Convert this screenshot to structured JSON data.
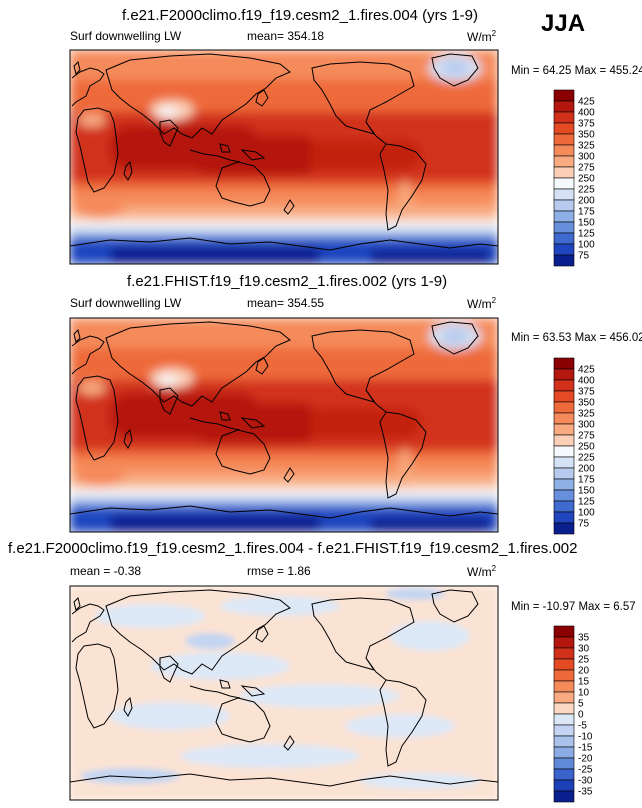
{
  "season": "JJA",
  "panels": [
    {
      "title": "f.e21.F2000climo.f19_f19.cesm2_1.fires.004 (yrs 1-9)",
      "variable": "Surf downwelling LW",
      "stat_label": "mean=",
      "stat_value": "354.18",
      "unit_base": "W/m",
      "unit_sup": "2",
      "minmax": "Min =  64.25 Max = 455.24"
    },
    {
      "title": "f.e21.FHIST.f19_f19.cesm2_1.fires.002 (yrs 1-9)",
      "variable": "Surf downwelling LW",
      "stat_label": "mean=",
      "stat_value": "354.55",
      "unit_base": "W/m",
      "unit_sup": "2",
      "minmax": "Min =  63.53 Max = 456.02"
    },
    {
      "title": "f.e21.F2000climo.f19_f19.cesm2_1.fires.004 - f.e21.FHIST.f19_f19.cesm2_1.fires.002",
      "variable": "mean =  -0.38",
      "stat_label": "rmse =",
      "stat_value": "1.86",
      "unit_base": "W/m",
      "unit_sup": "2",
      "minmax": "Min = -10.97 Max =   6.57"
    }
  ],
  "chart_data": [
    {
      "type": "heatmap",
      "title": "f.e21.F2000climo.f19_f19.cesm2_1.fires.004 (yrs 1-9)",
      "variable": "Surf downwelling LW",
      "units": "W/m2",
      "mean": 354.18,
      "min": 64.25,
      "max": 455.24,
      "colorbar_levels": [
        425,
        400,
        375,
        350,
        325,
        300,
        275,
        250,
        225,
        200,
        175,
        150,
        125,
        100,
        75
      ],
      "colorbar_colors": [
        "#8b0000",
        "#b4170e",
        "#d1301a",
        "#e44b24",
        "#ee6a3a",
        "#f58a5a",
        "#f8aa80",
        "#fbd0b6",
        "#f5f8fc",
        "#d5e2f5",
        "#b6cbee",
        "#8fb0e6",
        "#6690dc",
        "#3f6ad0",
        "#1f45bf",
        "#0b1e8e"
      ]
    },
    {
      "type": "heatmap",
      "title": "f.e21.FHIST.f19_f19.cesm2_1.fires.002 (yrs 1-9)",
      "variable": "Surf downwelling LW",
      "units": "W/m2",
      "mean": 354.55,
      "min": 63.53,
      "max": 456.02,
      "colorbar_levels": [
        425,
        400,
        375,
        350,
        325,
        300,
        275,
        250,
        225,
        200,
        175,
        150,
        125,
        100,
        75
      ],
      "colorbar_colors": [
        "#8b0000",
        "#b4170e",
        "#d1301a",
        "#e44b24",
        "#ee6a3a",
        "#f58a5a",
        "#f8aa80",
        "#fbd0b6",
        "#f5f8fc",
        "#d5e2f5",
        "#b6cbee",
        "#8fb0e6",
        "#6690dc",
        "#3f6ad0",
        "#1f45bf",
        "#0b1e8e"
      ]
    },
    {
      "type": "heatmap",
      "title": "f.e21.F2000climo.f19_f19.cesm2_1.fires.004 - f.e21.FHIST.f19_f19.cesm2_1.fires.002",
      "units": "W/m2",
      "mean": -0.38,
      "rmse": 1.86,
      "min": -10.97,
      "max": 6.57,
      "colorbar_levels": [
        35,
        30,
        25,
        20,
        15,
        10,
        5,
        0,
        -5,
        -10,
        -15,
        -20,
        -25,
        -30,
        -35
      ],
      "colorbar_colors": [
        "#8b0000",
        "#b4170e",
        "#d1301a",
        "#e44b24",
        "#ee6a3a",
        "#f58a5a",
        "#f8aa80",
        "#fbd8c4",
        "#dde8f7",
        "#c3d5f2",
        "#a8c2ec",
        "#8aabe3",
        "#5f8ad8",
        "#3a63cc",
        "#1c3fb8",
        "#0b1e8e"
      ]
    }
  ]
}
